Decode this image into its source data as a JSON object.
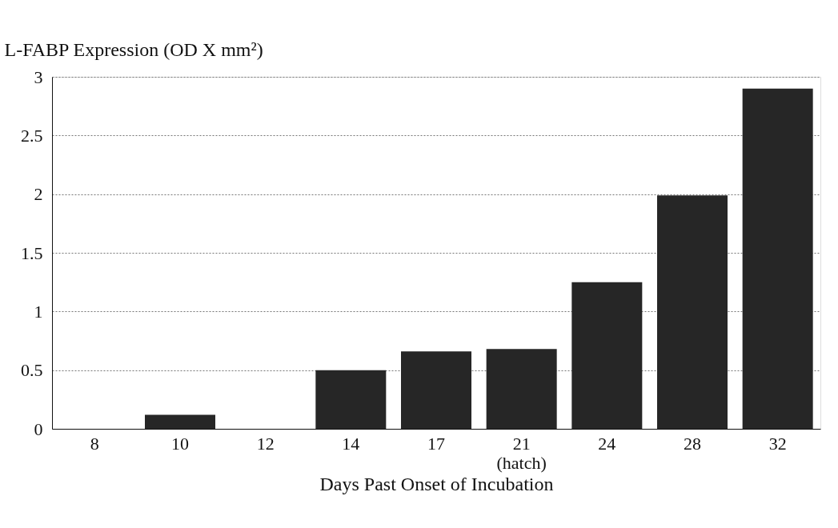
{
  "chart_data": {
    "type": "bar",
    "ylabel": "L-FABP Expression (OD X mm²)",
    "xlabel": "Days Past Onset of Incubation",
    "categories": [
      "8",
      "10",
      "12",
      "14",
      "17",
      "21\n(hatch)",
      "24",
      "28",
      "32"
    ],
    "values": [
      0,
      0.12,
      0,
      0.5,
      0.66,
      0.68,
      1.25,
      1.99,
      2.9
    ],
    "color": "#262626",
    "ylim": [
      0,
      3
    ],
    "yticks": [
      0,
      0.5,
      1,
      1.5,
      2,
      2.5,
      3
    ],
    "grid": "y"
  }
}
